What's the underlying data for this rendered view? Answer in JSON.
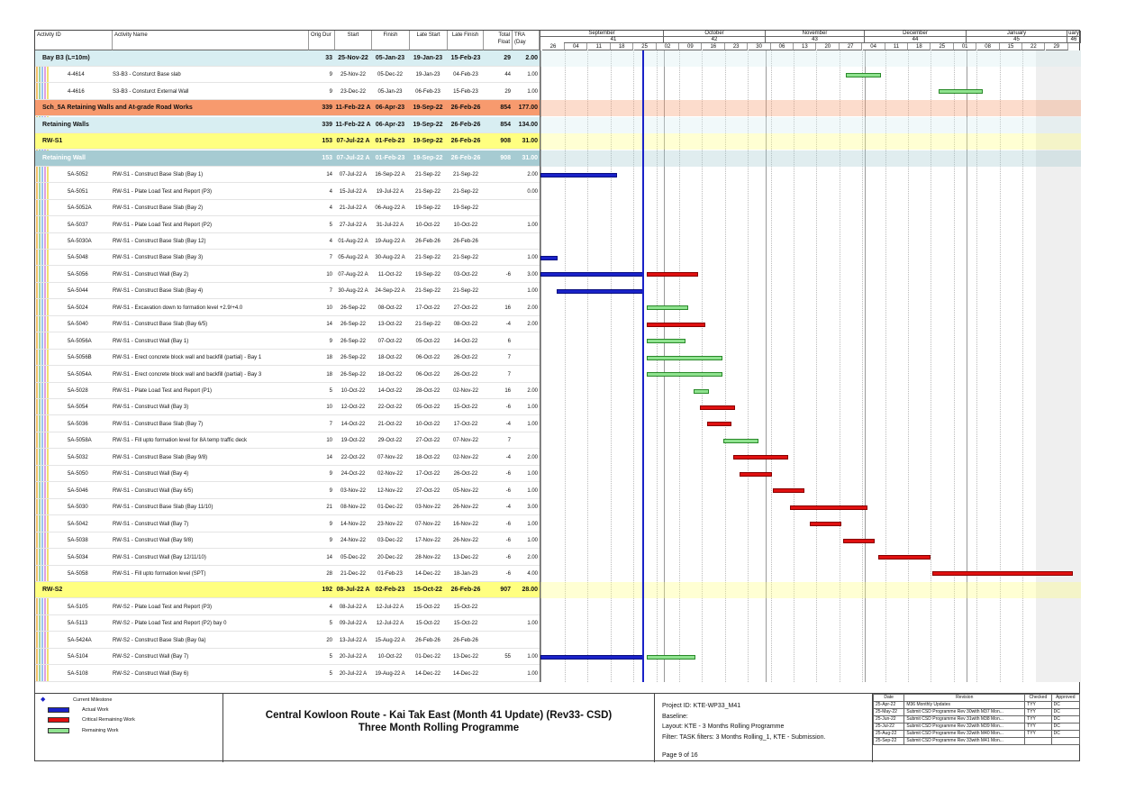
{
  "columns": {
    "id": "Activity ID",
    "name": "Activity Name",
    "od": "Orig Dur",
    "start": "Start",
    "finish": "Finish",
    "ls": "Late Start",
    "lf": "Late Finish",
    "tf": "Total Float",
    "tra": "TRA (Day"
  },
  "timescale": {
    "months": [
      {
        "label": "September",
        "x": 0,
        "w": 137
      },
      {
        "label": "October",
        "x": 137,
        "w": 113
      },
      {
        "label": "November",
        "x": 250,
        "w": 110
      },
      {
        "label": "December",
        "x": 360,
        "w": 113
      },
      {
        "label": "January",
        "x": 473,
        "w": 112
      },
      {
        "label": "uary",
        "x": 585,
        "w": 15
      }
    ],
    "weeks": [
      {
        "label": "41",
        "x": 26,
        "w": 111
      },
      {
        "label": "42",
        "x": 137,
        "w": 113
      },
      {
        "label": "43",
        "x": 250,
        "w": 110
      },
      {
        "label": "44",
        "x": 360,
        "w": 113
      },
      {
        "label": "45",
        "x": 473,
        "w": 112
      },
      {
        "label": "46",
        "x": 585,
        "w": 15
      }
    ],
    "days": [
      "26",
      "04",
      "11",
      "18",
      "25",
      "02",
      "09",
      "16",
      "23",
      "30",
      "06",
      "13",
      "20",
      "27",
      "04",
      "11",
      "18",
      "25",
      "01",
      "08",
      "15",
      "22",
      "29"
    ]
  },
  "rows": [
    {
      "type": "grp",
      "bg": "#d8eef2",
      "id": "",
      "name": "Bay B3 (L=10m)",
      "od": "33",
      "start": "25-Nov-22",
      "finish": "05-Jan-23",
      "ls": "19-Jan-23",
      "lf": "15-Feb-23",
      "tf": "29",
      "tra": "2.00"
    },
    {
      "type": "act",
      "id": "4-4614",
      "name": "S3-B3 - Consturct Base slab",
      "od": "9",
      "start": "25-Nov-22",
      "finish": "05-Dec-22",
      "ls": "19-Jan-23",
      "lf": "04-Feb-23",
      "tf": "44",
      "tra": "1.00",
      "bars": [
        {
          "c": "g",
          "x": 339,
          "w": 39
        }
      ]
    },
    {
      "type": "act",
      "id": "4-4616",
      "name": "S3-B3 - Consturct External Wall",
      "od": "9",
      "start": "23-Dec-22",
      "finish": "05-Jan-23",
      "ls": "06-Feb-23",
      "lf": "15-Feb-23",
      "tf": "29",
      "tra": "1.00",
      "bars": [
        {
          "c": "g",
          "x": 442,
          "w": 49
        }
      ]
    },
    {
      "type": "grp",
      "bg": "#f79a6e",
      "id": "",
      "name": "Sch_5A Retaining Walls and At-grade Road Works",
      "od": "339",
      "start": "11-Feb-22 A",
      "finish": "06-Apr-23",
      "ls": "19-Sep-22",
      "lf": "26-Feb-26",
      "tf": "854",
      "tra": "177.00"
    },
    {
      "type": "grp",
      "bg": "#d8eef2",
      "id": "",
      "name": "Retaining Walls",
      "od": "339",
      "start": "11-Feb-22 A",
      "finish": "06-Apr-23",
      "ls": "19-Sep-22",
      "lf": "26-Feb-26",
      "tf": "854",
      "tra": "134.00"
    },
    {
      "type": "grp",
      "bg": "#ffff80",
      "id": "",
      "name": "RW-S1",
      "od": "153",
      "start": "07-Jul-22 A",
      "finish": "01-Feb-23",
      "ls": "19-Sep-22",
      "lf": "26-Feb-26",
      "tf": "908",
      "tra": "31.00"
    },
    {
      "type": "grp",
      "bg": "#a6cbd2",
      "fg": "#fff",
      "id": "",
      "name": "Retaining Wall",
      "od": "153",
      "start": "07-Jul-22 A",
      "finish": "01-Feb-23",
      "ls": "19-Sep-22",
      "lf": "26-Feb-26",
      "tf": "908",
      "tra": "31.00"
    },
    {
      "type": "act",
      "id": "5A-5052",
      "name": "RW-S1 - Construct Base Slab (Bay 1)",
      "od": "14",
      "start": "07-Jul-22 A",
      "finish": "16-Sep-22 A",
      "ls": "21-Sep-22",
      "lf": "21-Sep-22",
      "tf": "",
      "tra": "2.00",
      "bars": [
        {
          "c": "b",
          "x": 0,
          "w": 85
        }
      ]
    },
    {
      "type": "act",
      "id": "5A-5051",
      "name": "RW-S1 - Plate Load Test and Report (P3)",
      "od": "4",
      "start": "15-Jul-22 A",
      "finish": "19-Jul-22 A",
      "ls": "21-Sep-22",
      "lf": "21-Sep-22",
      "tf": "",
      "tra": "0.00"
    },
    {
      "type": "act",
      "id": "5A-5052A",
      "name": "RW-S1 - Construct Base Slab (Bay 2)",
      "od": "4",
      "start": "21-Jul-22 A",
      "finish": "06-Aug-22 A",
      "ls": "19-Sep-22",
      "lf": "19-Sep-22",
      "tf": "",
      "tra": ""
    },
    {
      "type": "act",
      "id": "5A-5037",
      "name": "RW-S1 - Plate Load Test and Report (P2)",
      "od": "5",
      "start": "27-Jul-22 A",
      "finish": "31-Jul-22 A",
      "ls": "10-Oct-22",
      "lf": "10-Oct-22",
      "tf": "",
      "tra": "1.00"
    },
    {
      "type": "act",
      "id": "5A-5030A",
      "name": "RW-S1 - Construct Base Slab (Bay 12)",
      "od": "4",
      "start": "01-Aug-22 A",
      "finish": "19-Aug-22 A",
      "ls": "26-Feb-26",
      "lf": "26-Feb-26",
      "tf": "",
      "tra": ""
    },
    {
      "type": "act",
      "id": "5A-5048",
      "name": "RW-S1 - Construct Base Slab (Bay 3)",
      "od": "7",
      "start": "05-Aug-22 A",
      "finish": "30-Aug-22 A",
      "ls": "21-Sep-22",
      "lf": "21-Sep-22",
      "tf": "",
      "tra": "1.00",
      "bars": [
        {
          "c": "b",
          "x": 0,
          "w": 19
        }
      ]
    },
    {
      "type": "act",
      "id": "5A-5056",
      "name": "RW-S1 - Construct Wall (Bay 2)",
      "od": "10",
      "start": "07-Aug-22 A",
      "finish": "11-Oct-22",
      "ls": "19-Sep-22",
      "lf": "03-Oct-22",
      "tf": "-6",
      "tra": "3.00",
      "bars": [
        {
          "c": "b",
          "x": 0,
          "w": 115
        },
        {
          "c": "r",
          "x": 118,
          "w": 57
        }
      ]
    },
    {
      "type": "act",
      "id": "5A-5044",
      "name": "RW-S1 - Construct Base Slab (Bay 4)",
      "od": "7",
      "start": "30-Aug-22 A",
      "finish": "24-Sep-22 A",
      "ls": "21-Sep-22",
      "lf": "21-Sep-22",
      "tf": "",
      "tra": "1.00",
      "bars": [
        {
          "c": "b",
          "x": 18,
          "w": 97
        }
      ]
    },
    {
      "type": "act",
      "id": "5A-5024",
      "name": "RW-S1 - Excavation down to formation level +2.9/+4.0",
      "od": "10",
      "start": "26-Sep-22",
      "finish": "08-Oct-22",
      "ls": "17-Oct-22",
      "lf": "27-Oct-22",
      "tf": "16",
      "tra": "2.00",
      "bars": [
        {
          "c": "g",
          "x": 118,
          "w": 46
        }
      ]
    },
    {
      "type": "act",
      "id": "5A-5040",
      "name": "RW-S1 - Construct Base Slab (Bay 6/5)",
      "od": "14",
      "start": "26-Sep-22",
      "finish": "13-Oct-22",
      "ls": "21-Sep-22",
      "lf": "08-Oct-22",
      "tf": "-4",
      "tra": "2.00",
      "bars": [
        {
          "c": "r",
          "x": 118,
          "w": 65
        }
      ]
    },
    {
      "type": "act",
      "id": "5A-5056A",
      "name": "RW-S1 - Construct Wall (Bay 1)",
      "od": "9",
      "start": "26-Sep-22",
      "finish": "07-Oct-22",
      "ls": "05-Oct-22",
      "lf": "14-Oct-22",
      "tf": "6",
      "tra": "",
      "bars": [
        {
          "c": "g",
          "x": 118,
          "w": 43
        }
      ]
    },
    {
      "type": "act",
      "id": "5A-5056B",
      "name": "RW-S1 - Erect concrete block wall and backfill (partial) - Bay 1",
      "od": "18",
      "start": "26-Sep-22",
      "finish": "18-Oct-22",
      "ls": "06-Oct-22",
      "lf": "26-Oct-22",
      "tf": "7",
      "tra": "",
      "bars": [
        {
          "c": "g",
          "x": 118,
          "w": 84
        }
      ]
    },
    {
      "type": "act",
      "id": "5A-5054A",
      "name": "RW-S1 - Erect concrete block wall and backfill (partial) - Bay 3",
      "od": "18",
      "start": "26-Sep-22",
      "finish": "18-Oct-22",
      "ls": "06-Oct-22",
      "lf": "26-Oct-22",
      "tf": "7",
      "tra": "",
      "bars": [
        {
          "c": "g",
          "x": 118,
          "w": 84
        }
      ]
    },
    {
      "type": "act",
      "id": "5A-5028",
      "name": "RW-S1 - Plate Load Test and Report (P1)",
      "od": "5",
      "start": "10-Oct-22",
      "finish": "14-Oct-22",
      "ls": "28-Oct-22",
      "lf": "02-Nov-22",
      "tf": "16",
      "tra": "2.00",
      "bars": [
        {
          "c": "g",
          "x": 170,
          "w": 17
        }
      ]
    },
    {
      "type": "act",
      "id": "5A-5054",
      "name": "RW-S1 - Construct Wall (Bay 3)",
      "od": "10",
      "start": "12-Oct-22",
      "finish": "22-Oct-22",
      "ls": "05-Oct-22",
      "lf": "15-Oct-22",
      "tf": "-6",
      "tra": "1.00",
      "bars": [
        {
          "c": "r",
          "x": 177,
          "w": 39
        }
      ]
    },
    {
      "type": "act",
      "id": "5A-5036",
      "name": "RW-S1 - Construct Base Slab (Bay 7)",
      "od": "7",
      "start": "14-Oct-22",
      "finish": "21-Oct-22",
      "ls": "10-Oct-22",
      "lf": "17-Oct-22",
      "tf": "-4",
      "tra": "1.00",
      "bars": [
        {
          "c": "r",
          "x": 185,
          "w": 27
        }
      ]
    },
    {
      "type": "act",
      "id": "5A-5058A",
      "name": "RW-S1 - Fill upto formation level for 8A temp traffic deck",
      "od": "10",
      "start": "19-Oct-22",
      "finish": "29-Oct-22",
      "ls": "27-Oct-22",
      "lf": "07-Nov-22",
      "tf": "7",
      "tra": "",
      "bars": [
        {
          "c": "g",
          "x": 203,
          "w": 39
        }
      ]
    },
    {
      "type": "act",
      "id": "5A-5032",
      "name": "RW-S1 - Construct Base Slab (Bay 9/8)",
      "od": "14",
      "start": "22-Oct-22",
      "finish": "07-Nov-22",
      "ls": "18-Oct-22",
      "lf": "02-Nov-22",
      "tf": "-4",
      "tra": "2.00",
      "bars": [
        {
          "c": "r",
          "x": 214,
          "w": 61
        }
      ]
    },
    {
      "type": "act",
      "id": "5A-5050",
      "name": "RW-S1 - Construct Wall (Bay 4)",
      "od": "9",
      "start": "24-Oct-22",
      "finish": "02-Nov-22",
      "ls": "17-Oct-22",
      "lf": "26-Oct-22",
      "tf": "-6",
      "tra": "1.00",
      "bars": [
        {
          "c": "r",
          "x": 221,
          "w": 36
        }
      ]
    },
    {
      "type": "act",
      "id": "5A-5046",
      "name": "RW-S1 - Construct Wall (Bay 6/5)",
      "od": "9",
      "start": "03-Nov-22",
      "finish": "12-Nov-22",
      "ls": "27-Oct-22",
      "lf": "05-Nov-22",
      "tf": "-6",
      "tra": "1.00",
      "bars": [
        {
          "c": "r",
          "x": 258,
          "w": 35
        }
      ]
    },
    {
      "type": "act",
      "id": "5A-5030",
      "name": "RW-S1 - Construct Base Slab (Bay 11/10)",
      "od": "21",
      "start": "08-Nov-22",
      "finish": "01-Dec-22",
      "ls": "03-Nov-22",
      "lf": "26-Nov-22",
      "tf": "-4",
      "tra": "3.00",
      "bars": [
        {
          "c": "r",
          "x": 277,
          "w": 86
        }
      ]
    },
    {
      "type": "act",
      "id": "5A-5042",
      "name": "RW-S1 - Construct Wall (Bay 7)",
      "od": "9",
      "start": "14-Nov-22",
      "finish": "23-Nov-22",
      "ls": "07-Nov-22",
      "lf": "16-Nov-22",
      "tf": "-6",
      "tra": "1.00",
      "bars": [
        {
          "c": "r",
          "x": 299,
          "w": 35
        }
      ]
    },
    {
      "type": "act",
      "id": "5A-5038",
      "name": "RW-S1 - Construct Wall (Bay 9/8)",
      "od": "9",
      "start": "24-Nov-22",
      "finish": "03-Dec-22",
      "ls": "17-Nov-22",
      "lf": "26-Nov-22",
      "tf": "-6",
      "tra": "1.00",
      "bars": [
        {
          "c": "r",
          "x": 336,
          "w": 35
        }
      ]
    },
    {
      "type": "act",
      "id": "5A-5034",
      "name": "RW-S1 - Construct Wall (Bay 12/11/10)",
      "od": "14",
      "start": "05-Dec-22",
      "finish": "20-Dec-22",
      "ls": "28-Nov-22",
      "lf": "13-Dec-22",
      "tf": "-6",
      "tra": "2.00",
      "bars": [
        {
          "c": "r",
          "x": 375,
          "w": 58
        }
      ]
    },
    {
      "type": "act",
      "id": "5A-5058",
      "name": "RW-S1 - Fill upto formation level (SPT)",
      "od": "28",
      "start": "21-Dec-22",
      "finish": "01-Feb-23",
      "ls": "14-Dec-22",
      "lf": "18-Jan-23",
      "tf": "-6",
      "tra": "4.00",
      "bars": [
        {
          "c": "r",
          "x": 435,
          "w": 156
        }
      ]
    },
    {
      "type": "grp",
      "bg": "#ffff80",
      "id": "",
      "name": "RW-S2",
      "od": "192",
      "start": "08-Jul-22 A",
      "finish": "02-Feb-23",
      "ls": "15-Oct-22",
      "lf": "26-Feb-26",
      "tf": "907",
      "tra": "28.00"
    },
    {
      "type": "act",
      "id": "5A-5105",
      "name": "RW-S2 - Plate Load Test and Report (P3)",
      "od": "4",
      "start": "08-Jul-22 A",
      "finish": "12-Jul-22 A",
      "ls": "15-Oct-22",
      "lf": "15-Oct-22",
      "tf": "",
      "tra": ""
    },
    {
      "type": "act",
      "id": "5A-5113",
      "name": "RW-S2 - Plate Load Test and Report (P2) bay 0",
      "od": "5",
      "start": "09-Jul-22 A",
      "finish": "12-Jul-22 A",
      "ls": "15-Oct-22",
      "lf": "15-Oct-22",
      "tf": "",
      "tra": "1.00"
    },
    {
      "type": "act",
      "id": "5A-5424A",
      "name": "RW-S2 - Construct Base Slab (Bay 0a)",
      "od": "20",
      "start": "13-Jul-22 A",
      "finish": "15-Aug-22 A",
      "ls": "26-Feb-26",
      "lf": "26-Feb-26",
      "tf": "",
      "tra": ""
    },
    {
      "type": "act",
      "id": "5A-5104",
      "name": "RW-S2 - Construct Wall (Bay 7)",
      "od": "5",
      "start": "20-Jul-22 A",
      "finish": "10-Oct-22",
      "ls": "01-Dec-22",
      "lf": "13-Dec-22",
      "tf": "55",
      "tra": "1.00",
      "bars": [
        {
          "c": "b",
          "x": 0,
          "w": 115
        },
        {
          "c": "g",
          "x": 118,
          "w": 54
        }
      ]
    },
    {
      "type": "act",
      "id": "5A-5108",
      "name": "RW-S2 - Construct Wall (Bay 6)",
      "od": "5",
      "start": "20-Jul-22 A",
      "finish": "19-Aug-22 A",
      "ls": "14-Dec-22",
      "lf": "14-Dec-22",
      "tf": "",
      "tra": "1.00"
    }
  ],
  "legend": [
    {
      "label": "Current Milestone",
      "kind": "milestone",
      "color": "#1a22c8"
    },
    {
      "label": "Actual Work",
      "kind": "bar",
      "color": "#1a22c8"
    },
    {
      "label": "Critical Remaining Work",
      "kind": "bar",
      "color": "#e01010"
    },
    {
      "label": "Remaining Work",
      "kind": "bar",
      "color": "#8fe28f"
    }
  ],
  "footer": {
    "title1": "Central Kowloon Route - Kai Tak East (Month 41 Update) (Rev33- CSD)",
    "title2": "Three Month Rolling Programme",
    "project": "Project ID: KTE-WP33_M41",
    "baseline": "Baseline:",
    "layout": "Layout: KTE - 3 Months Rolling Programme",
    "filter": "Filter: TASK filters: 3 Months Rolling_1, KTE - Submission.",
    "page": "Page 9 of 16"
  },
  "revisions": {
    "headers": [
      "Date",
      "Revision",
      "Checked",
      "Approved"
    ],
    "rows": [
      [
        "25-Apr-22",
        "M36 Monthly Updates",
        "TYY",
        "DC"
      ],
      [
        "25-May-22",
        "Submit CSD Programme Rev 30with M37 Mon...",
        "TYY",
        "DC"
      ],
      [
        "25-Jun-22",
        "Submit CSD Programme Rev 31with M38 Mon...",
        "TYY",
        "DC"
      ],
      [
        "25-Jul-22",
        "Submit CSD Programme Rev 32with M39 Mon...",
        "TYY",
        "DC"
      ],
      [
        "25-Aug-22",
        "Submit CSD Programme Rev 32with M40 Mon...",
        "TYY",
        "DC"
      ],
      [
        "25-Sep-22",
        "Submit CSD Programme Rev 33with M41 Mon...",
        "",
        ""
      ]
    ]
  }
}
